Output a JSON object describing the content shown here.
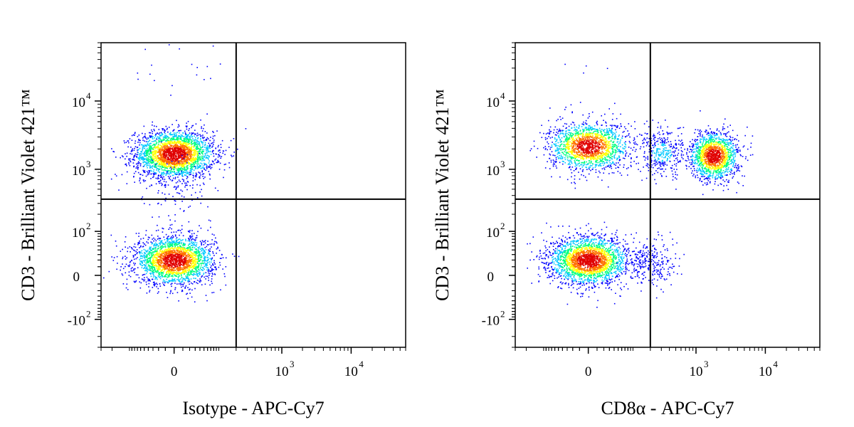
{
  "chart_data": [
    {
      "type": "scatter",
      "xlabel": "Isotype - APC-Cy7",
      "ylabel": "CD3 - Brilliant Violet 421™",
      "x_scale": "biexponential",
      "y_scale": "biexponential",
      "xlim": [
        -300,
        60000
      ],
      "ylim": [
        -300,
        70000
      ],
      "x_ticks": [
        {
          "value": 0,
          "base": "0",
          "exp": ""
        },
        {
          "value": 1000,
          "base": "10",
          "exp": "3"
        },
        {
          "value": 10000,
          "base": "10",
          "exp": "4"
        }
      ],
      "y_ticks": [
        {
          "value": -100,
          "base": "-10",
          "exp": "2"
        },
        {
          "value": 0,
          "base": "0",
          "exp": ""
        },
        {
          "value": 100,
          "base": "10",
          "exp": "2"
        },
        {
          "value": 1000,
          "base": "10",
          "exp": "3"
        },
        {
          "value": 10000,
          "base": "10",
          "exp": "4"
        }
      ],
      "gates": {
        "x": 200,
        "y": 350
      },
      "populations": [
        {
          "x": 0,
          "y": 1700,
          "n": 2600
        },
        {
          "x": 0,
          "y": 20,
          "n": 2400
        },
        {
          "x": 0,
          "y": 600,
          "n": 120
        },
        {
          "x": 0,
          "y": 30000,
          "n": 25
        }
      ],
      "grid": false,
      "legend": "none",
      "colormap": [
        "#0000ff",
        "#00c8ff",
        "#00ff80",
        "#ffff00",
        "#ff7000",
        "#e00000"
      ]
    },
    {
      "type": "scatter",
      "xlabel": "CD8α - APC-Cy7",
      "ylabel": "CD3 - Brilliant Violet 421™",
      "x_scale": "biexponential",
      "y_scale": "biexponential",
      "xlim": [
        -300,
        60000
      ],
      "ylim": [
        -300,
        70000
      ],
      "x_ticks": [
        {
          "value": 0,
          "base": "0",
          "exp": ""
        },
        {
          "value": 1000,
          "base": "10",
          "exp": "3"
        },
        {
          "value": 10000,
          "base": "10",
          "exp": "4"
        }
      ],
      "y_ticks": [
        {
          "value": -100,
          "base": "-10",
          "exp": "2"
        },
        {
          "value": 0,
          "base": "0",
          "exp": ""
        },
        {
          "value": 100,
          "base": "10",
          "exp": "2"
        },
        {
          "value": 1000,
          "base": "10",
          "exp": "3"
        },
        {
          "value": 10000,
          "base": "10",
          "exp": "4"
        }
      ],
      "gates": {
        "x": 200,
        "y": 350
      },
      "populations": [
        {
          "x": 0,
          "y": 2200,
          "n": 1700
        },
        {
          "x": 1800,
          "y": 1600,
          "n": 1500
        },
        {
          "x": 0,
          "y": 20,
          "n": 2400
        },
        {
          "x": 300,
          "y": 1800,
          "n": 350
        },
        {
          "x": 200,
          "y": 15,
          "n": 250
        },
        {
          "x": 0,
          "y": 25000,
          "n": 12
        }
      ],
      "grid": false,
      "legend": "none",
      "colormap": [
        "#0000ff",
        "#00c8ff",
        "#00ff80",
        "#ffff00",
        "#ff7000",
        "#e00000"
      ]
    }
  ]
}
